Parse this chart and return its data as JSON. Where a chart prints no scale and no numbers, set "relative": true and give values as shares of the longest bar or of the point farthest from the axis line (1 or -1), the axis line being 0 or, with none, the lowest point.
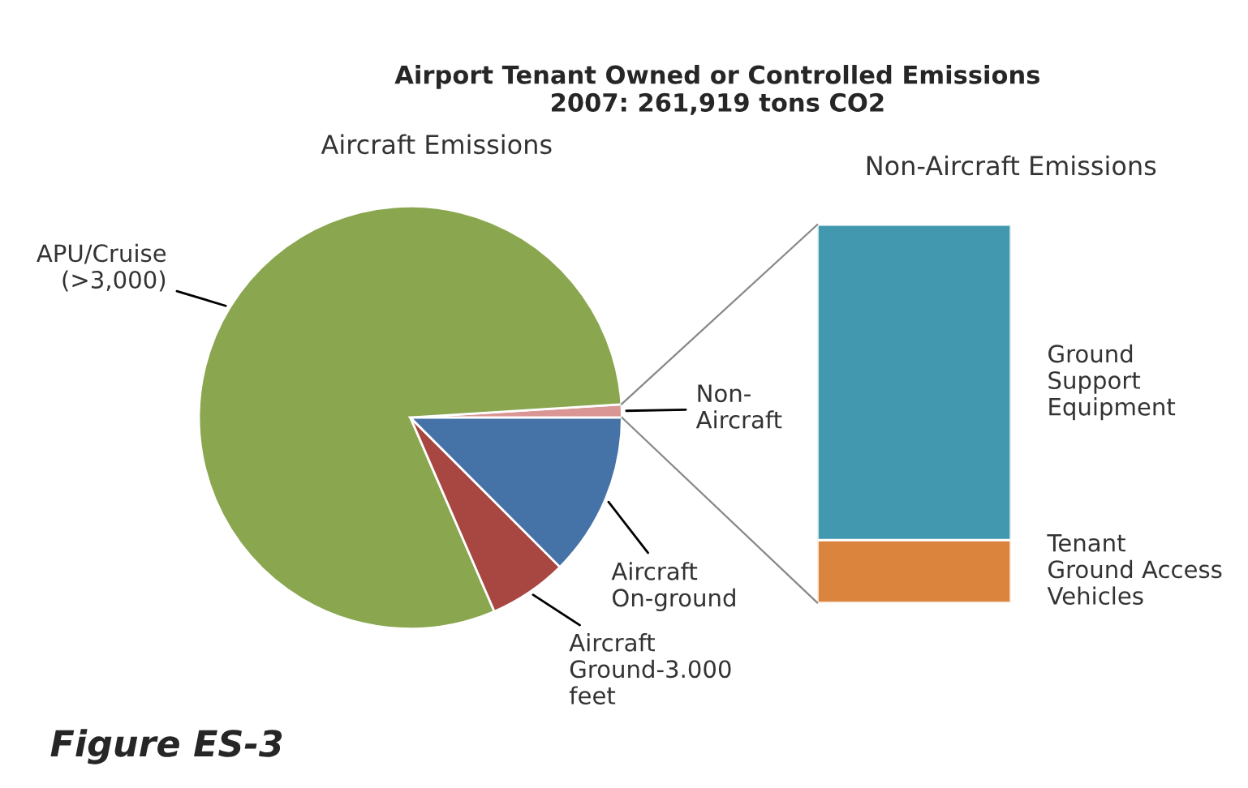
{
  "chart_data": [
    {
      "type": "pie",
      "title": "Airport Tenant Owned or Controlled Emissions",
      "subtitle": "2007: 261,919 tons CO2",
      "categories": [
        "Non-\nAircraft",
        "APU/Cruise\n(>3,000)",
        "Aircraft\nGround-3.000\nfeet",
        "Aircraft\nOn-ground"
      ],
      "values": [
        1,
        80.5,
        6,
        12.5
      ],
      "colors": [
        "#d99694",
        "#8aa64f",
        "#a84642",
        "#4572a7"
      ],
      "annotations": [
        "Aircraft Emissions",
        "Figure ES-3"
      ]
    },
    {
      "type": "bar",
      "title": "Non-Aircraft Emissions",
      "categories": [
        null
      ],
      "stacked": true,
      "relative": true,
      "series": [
        {
          "name": "Tenant\nGround Access\nVehicles",
          "color": "#db843d",
          "values": [
            0.166
          ]
        },
        {
          "name": "Ground\nSupport\nEquipment",
          "color": "#4198af",
          "values": [
            0.834
          ]
        }
      ]
    }
  ]
}
